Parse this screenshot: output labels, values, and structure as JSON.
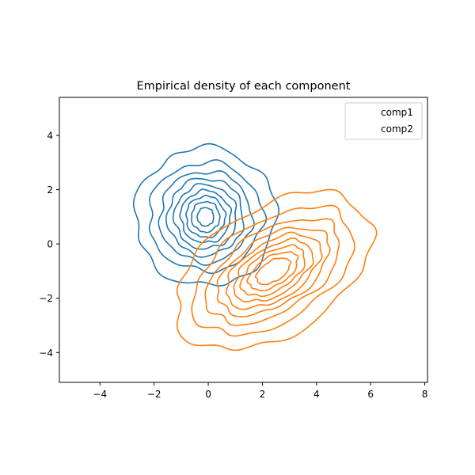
{
  "chart_data": {
    "type": "contour",
    "title": "Empirical density of each component",
    "xlabel": "",
    "ylabel": "",
    "xlim": [
      -5.5,
      8.1
    ],
    "ylim": [
      -5.1,
      5.4
    ],
    "xticks": [
      -4,
      -2,
      0,
      2,
      4,
      6,
      8
    ],
    "yticks": [
      -4,
      -2,
      0,
      2,
      4
    ],
    "xtick_labels": [
      "−4",
      "−2",
      "0",
      "2",
      "4",
      "6",
      "8"
    ],
    "ytick_labels": [
      "−4",
      "−2",
      "0",
      "2",
      "4"
    ],
    "legend_position": "upper right",
    "grid": false,
    "series": [
      {
        "name": "comp1",
        "color": "#1f77b4",
        "center": [
          -0.1,
          1.0
        ],
        "contours": [
          {
            "rx": 2.6,
            "ry": 2.55
          },
          {
            "rx": 2.1,
            "ry": 2.0
          },
          {
            "rx": 1.7,
            "ry": 1.68
          },
          {
            "rx": 1.4,
            "ry": 1.42
          },
          {
            "rx": 1.15,
            "ry": 1.18
          },
          {
            "rx": 0.92,
            "ry": 0.96
          },
          {
            "rx": 0.72,
            "ry": 0.76
          },
          {
            "rx": 0.52,
            "ry": 0.56
          },
          {
            "rx": 0.3,
            "ry": 0.34
          }
        ]
      },
      {
        "name": "comp2",
        "color": "#ff7f0e",
        "center": [
          2.4,
          -1.0
        ],
        "angle_deg": 32,
        "contours": [
          {
            "a": 4.0,
            "b": 2.35
          },
          {
            "a": 3.3,
            "b": 1.85
          },
          {
            "a": 2.75,
            "b": 1.5
          },
          {
            "a": 2.3,
            "b": 1.25
          },
          {
            "a": 1.95,
            "b": 1.05
          },
          {
            "a": 1.62,
            "b": 0.87
          },
          {
            "a": 1.32,
            "b": 0.7
          },
          {
            "a": 1.02,
            "b": 0.53
          },
          {
            "a": 0.7,
            "b": 0.37
          }
        ]
      }
    ]
  }
}
